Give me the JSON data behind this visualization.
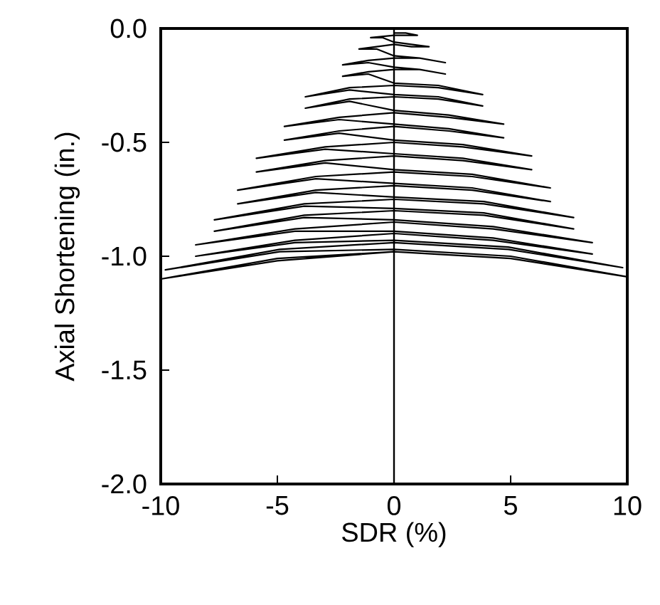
{
  "chart_data": {
    "type": "line",
    "xlabel": "SDR (%)",
    "ylabel": "Axial Shortening (in.)",
    "color": "#000000",
    "xlim": [
      -10,
      10
    ],
    "ylim": [
      -2,
      0
    ],
    "xticks": [
      -10,
      -5,
      0,
      5,
      10
    ],
    "yticks": [
      {
        "value": 0,
        "label": "0.0"
      },
      {
        "value": -0.5,
        "label": "-0.5"
      },
      {
        "value": -1,
        "label": "-1.0"
      },
      {
        "value": -1.5,
        "label": "-1.5"
      },
      {
        "value": -2,
        "label": "-2.0"
      }
    ],
    "ref_lines": [
      {
        "axis": "x",
        "value": 0,
        "label": null,
        "color": "#000000"
      }
    ],
    "x": [
      0,
      0.5,
      1,
      0,
      -1,
      -0.5,
      0,
      0.75,
      1.5,
      0.75,
      0,
      -0.75,
      -1.5,
      -0.75,
      0,
      1.1,
      2.2,
      1.1,
      0,
      -1.1,
      -2.2,
      -1.1,
      0,
      1.1,
      2.2,
      1.1,
      0,
      -1.1,
      -2.2,
      -1.1,
      0,
      1.9,
      3.8,
      1.9,
      0,
      -1.9,
      -3.8,
      -1.9,
      0,
      1.9,
      3.8,
      1.9,
      0,
      -1.9,
      -3.8,
      -1.9,
      0,
      2.35,
      4.7,
      2.35,
      0,
      -2.35,
      -4.7,
      -2.35,
      0,
      2.35,
      4.7,
      2.35,
      0,
      -2.35,
      -4.7,
      -2.35,
      0,
      2.95,
      5.9,
      2.95,
      0,
      -2.95,
      -5.9,
      -2.95,
      0,
      2.95,
      5.9,
      2.95,
      0,
      -2.95,
      -5.9,
      -2.95,
      0,
      3.35,
      6.7,
      3.35,
      0,
      -3.35,
      -6.7,
      -3.35,
      0,
      3.35,
      6.7,
      3.35,
      0,
      -3.35,
      -6.7,
      -3.35,
      0,
      3.85,
      7.7,
      3.85,
      0,
      -3.85,
      -7.7,
      -3.85,
      0,
      3.85,
      7.7,
      3.85,
      0,
      -3.85,
      -7.7,
      -3.85,
      0,
      4.25,
      8.5,
      4.25,
      0,
      -4.25,
      -8.5,
      -4.25,
      0,
      4.25,
      8.5,
      4.25,
      0,
      -4.25,
      -8.5,
      -4.25,
      0,
      4.9,
      9.8,
      4.9,
      0,
      -4.9,
      -9.8,
      -4.9,
      0,
      5,
      10,
      5,
      0,
      -5,
      -10,
      -5,
      0
    ],
    "values": [
      -0.02,
      -0.02,
      -0.03,
      -0.03,
      -0.04,
      -0.04,
      -0.06,
      -0.07,
      -0.08,
      -0.08,
      -0.07,
      -0.08,
      -0.09,
      -0.09,
      -0.12,
      -0.13,
      -0.15,
      -0.13,
      -0.13,
      -0.14,
      -0.16,
      -0.15,
      -0.17,
      -0.18,
      -0.2,
      -0.18,
      -0.18,
      -0.19,
      -0.21,
      -0.2,
      -0.24,
      -0.25,
      -0.29,
      -0.26,
      -0.25,
      -0.26,
      -0.3,
      -0.27,
      -0.29,
      -0.3,
      -0.34,
      -0.31,
      -0.3,
      -0.31,
      -0.35,
      -0.32,
      -0.36,
      -0.38,
      -0.42,
      -0.39,
      -0.37,
      -0.39,
      -0.43,
      -0.4,
      -0.42,
      -0.44,
      -0.48,
      -0.45,
      -0.43,
      -0.45,
      -0.49,
      -0.46,
      -0.49,
      -0.51,
      -0.56,
      -0.52,
      -0.5,
      -0.52,
      -0.57,
      -0.53,
      -0.55,
      -0.57,
      -0.62,
      -0.58,
      -0.56,
      -0.58,
      -0.63,
      -0.59,
      -0.62,
      -0.64,
      -0.7,
      -0.65,
      -0.63,
      -0.65,
      -0.71,
      -0.66,
      -0.68,
      -0.7,
      -0.76,
      -0.71,
      -0.69,
      -0.71,
      -0.77,
      -0.72,
      -0.74,
      -0.76,
      -0.83,
      -0.77,
      -0.75,
      -0.77,
      -0.84,
      -0.78,
      -0.79,
      -0.81,
      -0.88,
      -0.82,
      -0.8,
      -0.82,
      -0.89,
      -0.83,
      -0.84,
      -0.87,
      -0.94,
      -0.88,
      -0.85,
      -0.88,
      -0.95,
      -0.89,
      -0.89,
      -0.92,
      -0.99,
      -0.93,
      -0.9,
      -0.93,
      -1.0,
      -0.94,
      -0.93,
      -0.96,
      -1.05,
      -0.97,
      -0.94,
      -0.97,
      -1.06,
      -0.98,
      -0.97,
      -1.0,
      -1.09,
      -1.01,
      -0.98,
      -1.01,
      -1.1,
      -1.02,
      -0.98
    ]
  }
}
